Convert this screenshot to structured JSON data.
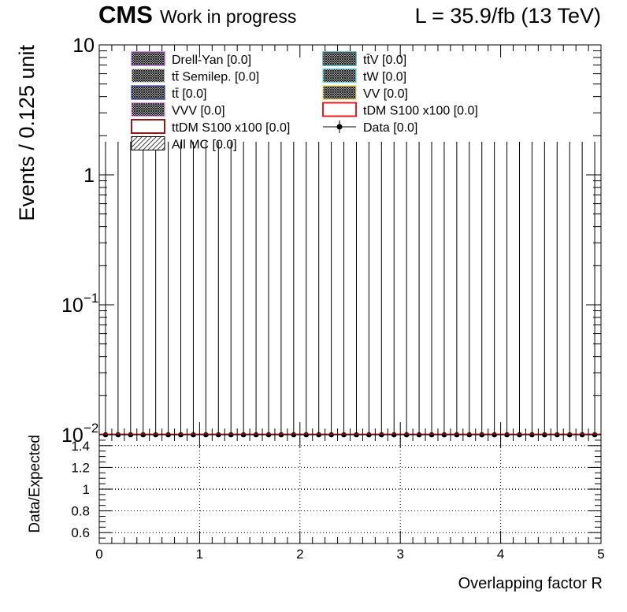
{
  "header": {
    "experiment": "CMS",
    "status": "Work in progress",
    "lumi": "L = 35.9/fb (13 TeV)"
  },
  "chart_data": [
    {
      "type": "bar",
      "panel": "main",
      "ylabel": "Events / 0.125 unit",
      "xlim": [
        0,
        5
      ],
      "ylim": [
        0.01,
        10
      ],
      "yscale": "log",
      "ytick_labels": [
        {
          "value": 10,
          "label": "10"
        },
        {
          "value": 1,
          "label": "1"
        },
        {
          "value": 0.1,
          "label": "10",
          "sup": "−1"
        },
        {
          "value": 0.01,
          "label": "10",
          "sup": "−2"
        }
      ],
      "legend": [
        {
          "label": "Drell-Yan [0.0]",
          "color": "#9b4fc4",
          "style": "hatch"
        },
        {
          "label": "tt̄ Semilep. [0.0]",
          "color": "#d4d4d4",
          "style": "hatch"
        },
        {
          "label": "tt̄ [0.0]",
          "color": "#2a3a9c",
          "style": "hatch"
        },
        {
          "label": "VVV [0.0]",
          "color": "#d98ee0",
          "style": "hatch"
        },
        {
          "label": "ttDM S100 x100 [0.0]",
          "color": "#8b1a1a",
          "style": "box"
        },
        {
          "label": "All MC [0.0]",
          "color": "#555555",
          "style": "diag"
        },
        {
          "label": "tt̄V [0.0]",
          "color": "#2f8c8c",
          "style": "hatch"
        },
        {
          "label": "tW [0.0]",
          "color": "#52d8e8",
          "style": "hatch"
        },
        {
          "label": "VV [0.0]",
          "color": "#e8d44a",
          "style": "hatch"
        },
        {
          "label": "tDM S100 x100 [0.0]",
          "color": "#e02020",
          "style": "box"
        },
        {
          "label": "Data [0.0]",
          "color": "#000000",
          "style": "marker"
        }
      ],
      "data": {
        "bin_width": 0.125,
        "x": [
          0.0625,
          0.1875,
          0.3125,
          0.4375,
          0.5625,
          0.6875,
          0.8125,
          0.9375,
          1.0625,
          1.1875,
          1.3125,
          1.4375,
          1.5625,
          1.6875,
          1.8125,
          1.9375,
          2.0625,
          2.1875,
          2.3125,
          2.4375,
          2.5625,
          2.6875,
          2.8125,
          2.9375,
          3.0625,
          3.1875,
          3.3125,
          3.4375,
          3.5625,
          3.6875,
          3.8125,
          3.9375,
          4.0625,
          4.1875,
          4.3125,
          4.4375,
          4.5625,
          4.6875,
          4.8125,
          4.9375
        ],
        "y": [
          0,
          0,
          0,
          0,
          0,
          0,
          0,
          0,
          0,
          0,
          0,
          0,
          0,
          0,
          0,
          0,
          0,
          0,
          0,
          0,
          0,
          0,
          0,
          0,
          0,
          0,
          0,
          0,
          0,
          0,
          0,
          0,
          0,
          0,
          0,
          0,
          0,
          0,
          0,
          0
        ],
        "yerr_up": 1.8
      },
      "mc_total": [
        0,
        0,
        0,
        0,
        0,
        0,
        0,
        0,
        0,
        0,
        0,
        0,
        0,
        0,
        0,
        0,
        0,
        0,
        0,
        0,
        0,
        0,
        0,
        0,
        0,
        0,
        0,
        0,
        0,
        0,
        0,
        0,
        0,
        0,
        0,
        0,
        0,
        0,
        0,
        0
      ]
    },
    {
      "type": "scatter",
      "panel": "ratio",
      "xlabel": "Overlapping factor R",
      "ylabel": "Data/Expected",
      "xlim": [
        0,
        5
      ],
      "ylim": [
        0.5,
        1.5
      ],
      "xtick_labels": [
        "0",
        "1",
        "2",
        "3",
        "4",
        "5"
      ],
      "ytick_labels": [
        "0.6",
        "0.8",
        "1",
        "1.2",
        "1.4"
      ],
      "grid": true,
      "values": []
    }
  ]
}
